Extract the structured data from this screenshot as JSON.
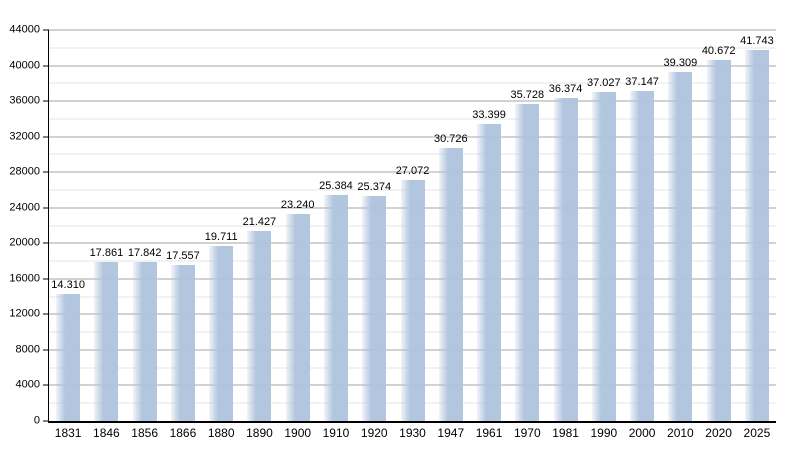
{
  "chart_data": {
    "type": "bar",
    "title": "",
    "xlabel": "",
    "ylabel": "",
    "categories": [
      "1831",
      "1846",
      "1856",
      "1866",
      "1880",
      "1890",
      "1900",
      "1910",
      "1920",
      "1930",
      "1947",
      "1961",
      "1970",
      "1981",
      "1990",
      "2000",
      "2010",
      "2020",
      "2025"
    ],
    "values": [
      14310,
      17861,
      17842,
      17557,
      19711,
      21427,
      23240,
      25384,
      25374,
      27072,
      30726,
      33399,
      35728,
      36374,
      37027,
      37147,
      39309,
      40672,
      41743
    ],
    "value_labels": [
      "14.310",
      "17.861",
      "17.842",
      "17.557",
      "19.711",
      "21.427",
      "23.240",
      "25.384",
      "25.374",
      "27.072",
      "30.726",
      "33.399",
      "35.728",
      "36.374",
      "37.027",
      "37.147",
      "39.309",
      "40.672",
      "41.743"
    ],
    "ylim": [
      0,
      44000
    ],
    "y_major_step": 4000,
    "y_minor_step": 2000,
    "y_tick_labels": [
      "0",
      "4000",
      "8000",
      "12000",
      "16000",
      "20000",
      "24000",
      "28000",
      "32000",
      "36000",
      "40000",
      "44000"
    ],
    "grid": "on",
    "legend": "none",
    "colors": {
      "bar": "#b0c4de",
      "grid_major": "#a6a6a6",
      "grid_minor": "#e4e4e4",
      "axis": "#000000",
      "text": "#000000",
      "background": "#ffffff"
    }
  }
}
